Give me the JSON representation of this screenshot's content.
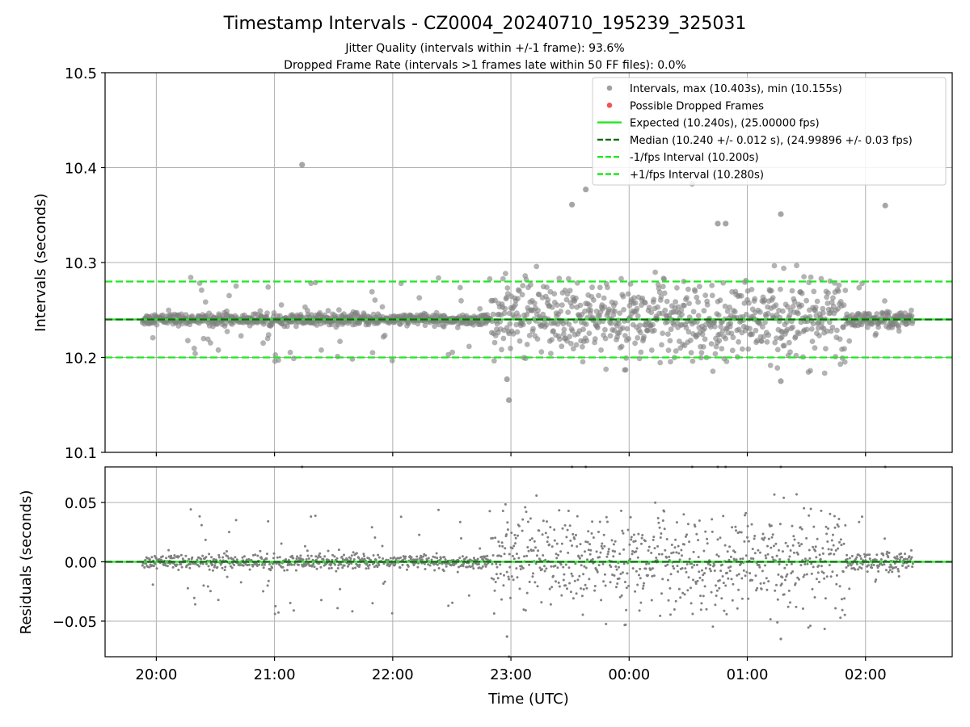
{
  "figure": {
    "title": "Timestamp Intervals - CZ0004_20240710_195239_325031",
    "subtitle1": "Jitter Quality (intervals within +/-1 frame): 93.6%",
    "subtitle2": "Dropped Frame Rate (intervals >1 frames late within 50 FF files): 0.0%"
  },
  "colors": {
    "points": "#808080",
    "dropped": "#ee4444",
    "expected": "#22e622",
    "median": "#0b6e0b",
    "fps_interval": "#22e622",
    "grid": "#b0b0b0"
  },
  "chart_data": [
    {
      "type": "scatter",
      "panel": "intervals",
      "ylabel": "Intervals (seconds)",
      "xlim": [
        "19:34",
        "02:44"
      ],
      "ylim": [
        10.1,
        10.5
      ],
      "yticks": [
        "10.1",
        "10.2",
        "10.3",
        "10.4",
        "10.5"
      ],
      "grid": true,
      "legend_position": "top-right",
      "legend": [
        {
          "label": "Intervals, max (10.403s), min (10.155s)",
          "marker": "dot",
          "color": "#a0a0a0"
        },
        {
          "label": "Possible Dropped Frames",
          "marker": "dot",
          "color": "#ee5555"
        },
        {
          "label": "Expected (10.240s), (25.00000 fps)",
          "marker": "solid",
          "color": "#22e622"
        },
        {
          "label": "Median (10.240 +/- 0.012 s), (24.99896 +/- 0.03 fps)",
          "marker": "dashed",
          "color": "#0b6e0b"
        },
        {
          "label": "-1/fps Interval (10.200s)",
          "marker": "dashed",
          "color": "#22e622"
        },
        {
          "label": "+1/fps Interval (10.280s)",
          "marker": "dashed",
          "color": "#22e622"
        }
      ],
      "lines": {
        "expected": 10.24,
        "median": 10.24,
        "minus_fps": 10.2,
        "plus_fps": 10.28
      },
      "stats": {
        "max": 10.403,
        "min": 10.155
      },
      "time_range": [
        "19:53",
        "02:24"
      ],
      "sample_interval_seconds": 10.24,
      "segments": [
        {
          "start": "19:53",
          "end": "22:50",
          "typical_spread": 0.003,
          "outlier_fraction": 0.08,
          "outlier_spread": 0.045
        },
        {
          "start": "22:50",
          "end": "01:50",
          "typical_spread": 0.018,
          "outlier_fraction": 0.12,
          "outlier_spread": 0.06
        },
        {
          "start": "01:50",
          "end": "02:24",
          "typical_spread": 0.004,
          "outlier_fraction": 0.08,
          "outlier_spread": 0.04
        }
      ],
      "notable_points": [
        {
          "x": "21:14",
          "y": 10.403
        },
        {
          "x": "22:59",
          "y": 10.155
        },
        {
          "x": "00:32",
          "y": 10.383
        },
        {
          "x": "23:38",
          "y": 10.377
        },
        {
          "x": "23:31",
          "y": 10.361
        },
        {
          "x": "02:10",
          "y": 10.36
        },
        {
          "x": "01:17",
          "y": 10.351
        },
        {
          "x": "00:45",
          "y": 10.341
        },
        {
          "x": "00:49",
          "y": 10.341
        },
        {
          "x": "22:58",
          "y": 10.177
        },
        {
          "x": "01:17",
          "y": 10.175
        }
      ]
    },
    {
      "type": "scatter",
      "panel": "residuals",
      "ylabel": "Residuals (seconds)",
      "xlabel": "Time (UTC)",
      "xlim": [
        "19:34",
        "02:44"
      ],
      "ylim": [
        -0.08,
        0.08
      ],
      "yticks": [
        "−0.05",
        "0.00",
        "0.05"
      ],
      "xticks": [
        "20:00",
        "21:00",
        "22:00",
        "23:00",
        "00:00",
        "01:00",
        "02:00"
      ],
      "grid": true,
      "lines": {
        "expected": 0.0,
        "median": 0.0
      }
    }
  ]
}
